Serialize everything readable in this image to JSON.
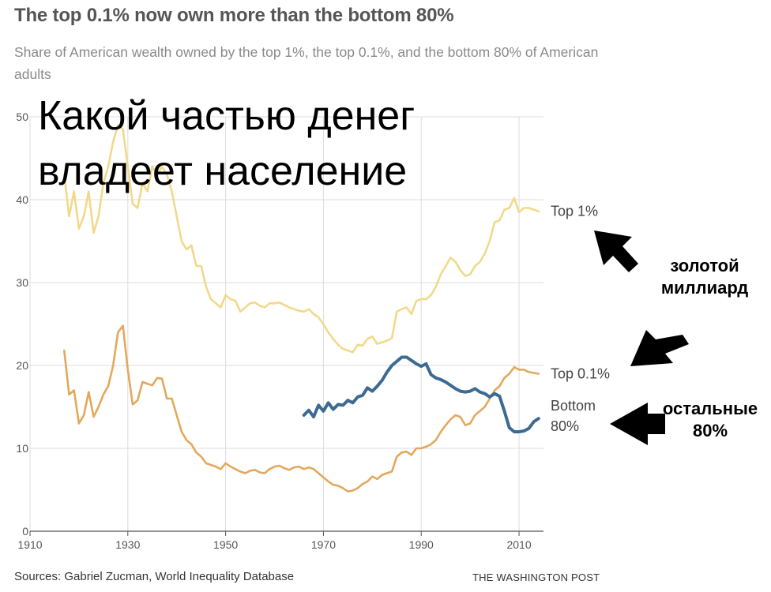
{
  "title": "The top 0.1% now own more than the bottom 80%",
  "subtitle": "Share of American wealth owned by the top 1%, the top 0.1%, and the bottom 80% of American adults",
  "overlay_caption": [
    "Какой частью денег",
    "владеет население"
  ],
  "source": "Sources: Gabriel Zucman, World Inequality Database",
  "credit": "THE WASHINGTON POST",
  "annotations": {
    "golden_billion": [
      "золотой",
      "миллиард"
    ],
    "rest": [
      "остальные",
      "80%"
    ]
  },
  "colors": {
    "top1": "#f2d98a",
    "top01": "#e3a85c",
    "bottom80": "#3d6a93",
    "grid": "#dddddd"
  },
  "chart_data": {
    "type": "line",
    "xlim": [
      1910,
      2015
    ],
    "ylim": [
      0,
      50
    ],
    "x_ticks": [
      "1910",
      "1930",
      "1950",
      "1970",
      "1990",
      "2010"
    ],
    "x_tick_values": [
      1910,
      1930,
      1950,
      1970,
      1990,
      2010
    ],
    "y_ticks": [
      "0",
      "10",
      "20",
      "30",
      "40",
      "50"
    ],
    "y_tick_values": [
      0,
      10,
      20,
      30,
      40,
      50
    ],
    "series": [
      {
        "name": "Top 1%",
        "label_lines": [
          "Top 1%"
        ],
        "color_key": "top1",
        "points": [
          [
            1917,
            43
          ],
          [
            1918,
            38
          ],
          [
            1919,
            41
          ],
          [
            1920,
            36.5
          ],
          [
            1921,
            38
          ],
          [
            1922,
            41
          ],
          [
            1923,
            36
          ],
          [
            1924,
            38
          ],
          [
            1925,
            42
          ],
          [
            1926,
            44
          ],
          [
            1927,
            47
          ],
          [
            1928,
            49
          ],
          [
            1929,
            48.5
          ],
          [
            1930,
            44
          ],
          [
            1931,
            39.5
          ],
          [
            1932,
            39
          ],
          [
            1933,
            42
          ],
          [
            1934,
            41
          ],
          [
            1935,
            44
          ],
          [
            1936,
            43
          ],
          [
            1937,
            44
          ],
          [
            1938,
            43
          ],
          [
            1939,
            41
          ],
          [
            1940,
            38
          ],
          [
            1941,
            35
          ],
          [
            1942,
            34
          ],
          [
            1943,
            34.5
          ],
          [
            1944,
            32
          ],
          [
            1945,
            32
          ],
          [
            1946,
            29.5
          ],
          [
            1947,
            28
          ],
          [
            1948,
            27.5
          ],
          [
            1949,
            27
          ],
          [
            1950,
            28.5
          ],
          [
            1951,
            28
          ],
          [
            1952,
            27.8
          ],
          [
            1953,
            26.5
          ],
          [
            1954,
            27
          ],
          [
            1955,
            27.5
          ],
          [
            1956,
            27.6
          ],
          [
            1957,
            27.2
          ],
          [
            1958,
            27
          ],
          [
            1959,
            27.5
          ],
          [
            1960,
            27.5
          ],
          [
            1961,
            27.6
          ],
          [
            1962,
            27.3
          ],
          [
            1963,
            27
          ],
          [
            1964,
            26.8
          ],
          [
            1965,
            26.6
          ],
          [
            1966,
            26.5
          ],
          [
            1967,
            26.8
          ],
          [
            1968,
            26.2
          ],
          [
            1969,
            25.8
          ],
          [
            1970,
            25
          ],
          [
            1971,
            24
          ],
          [
            1972,
            23.2
          ],
          [
            1973,
            22.5
          ],
          [
            1974,
            22
          ],
          [
            1975,
            21.8
          ],
          [
            1976,
            21.6
          ],
          [
            1977,
            22.5
          ],
          [
            1978,
            22.4
          ],
          [
            1979,
            23.2
          ],
          [
            1980,
            23.5
          ],
          [
            1981,
            22.6
          ],
          [
            1982,
            22.8
          ],
          [
            1983,
            23
          ],
          [
            1984,
            23.3
          ],
          [
            1985,
            26.5
          ],
          [
            1986,
            26.8
          ],
          [
            1987,
            27
          ],
          [
            1988,
            26.2
          ],
          [
            1989,
            27.8
          ],
          [
            1990,
            28
          ],
          [
            1991,
            28
          ],
          [
            1992,
            28.5
          ],
          [
            1993,
            29.5
          ],
          [
            1994,
            31
          ],
          [
            1995,
            32
          ],
          [
            1996,
            33
          ],
          [
            1997,
            32.5
          ],
          [
            1998,
            31.5
          ],
          [
            1999,
            30.8
          ],
          [
            2000,
            31
          ],
          [
            2001,
            32
          ],
          [
            2002,
            32.5
          ],
          [
            2003,
            33.5
          ],
          [
            2004,
            35
          ],
          [
            2005,
            37.3
          ],
          [
            2006,
            37.5
          ],
          [
            2007,
            38.8
          ],
          [
            2008,
            39
          ],
          [
            2009,
            40.2
          ],
          [
            2010,
            38.5
          ],
          [
            2011,
            39
          ],
          [
            2012,
            39
          ],
          [
            2013,
            38.8
          ],
          [
            2014,
            38.6
          ]
        ]
      },
      {
        "name": "Top 0.1%",
        "label_lines": [
          "Top 0.1%"
        ],
        "color_key": "top01",
        "points": [
          [
            1917,
            21.8
          ],
          [
            1918,
            16.5
          ],
          [
            1919,
            17
          ],
          [
            1920,
            13
          ],
          [
            1921,
            14
          ],
          [
            1922,
            16.8
          ],
          [
            1923,
            13.8
          ],
          [
            1924,
            15
          ],
          [
            1925,
            16.5
          ],
          [
            1926,
            17.5
          ],
          [
            1927,
            20
          ],
          [
            1928,
            24
          ],
          [
            1929,
            24.8
          ],
          [
            1930,
            19.5
          ],
          [
            1931,
            15.3
          ],
          [
            1932,
            15.8
          ],
          [
            1933,
            18
          ],
          [
            1934,
            17.8
          ],
          [
            1935,
            17.6
          ],
          [
            1936,
            18.5
          ],
          [
            1937,
            18.4
          ],
          [
            1938,
            16
          ],
          [
            1939,
            16
          ],
          [
            1940,
            14
          ],
          [
            1941,
            12
          ],
          [
            1942,
            11
          ],
          [
            1943,
            10.5
          ],
          [
            1944,
            9.5
          ],
          [
            1945,
            9
          ],
          [
            1946,
            8.2
          ],
          [
            1947,
            8
          ],
          [
            1948,
            7.8
          ],
          [
            1949,
            7.5
          ],
          [
            1950,
            8.2
          ],
          [
            1951,
            7.8
          ],
          [
            1952,
            7.5
          ],
          [
            1953,
            7.2
          ],
          [
            1954,
            7
          ],
          [
            1955,
            7.3
          ],
          [
            1956,
            7.4
          ],
          [
            1957,
            7.1
          ],
          [
            1958,
            7
          ],
          [
            1959,
            7.5
          ],
          [
            1960,
            7.8
          ],
          [
            1961,
            7.9
          ],
          [
            1962,
            7.6
          ],
          [
            1963,
            7.4
          ],
          [
            1964,
            7.7
          ],
          [
            1965,
            7.8
          ],
          [
            1966,
            7.5
          ],
          [
            1967,
            7.7
          ],
          [
            1968,
            7.5
          ],
          [
            1969,
            7
          ],
          [
            1970,
            6.5
          ],
          [
            1971,
            6
          ],
          [
            1972,
            5.6
          ],
          [
            1973,
            5.5
          ],
          [
            1974,
            5.2
          ],
          [
            1975,
            4.8
          ],
          [
            1976,
            4.9
          ],
          [
            1977,
            5.2
          ],
          [
            1978,
            5.7
          ],
          [
            1979,
            6
          ],
          [
            1980,
            6.6
          ],
          [
            1981,
            6.3
          ],
          [
            1982,
            6.8
          ],
          [
            1983,
            7
          ],
          [
            1984,
            7.2
          ],
          [
            1985,
            9
          ],
          [
            1986,
            9.5
          ],
          [
            1987,
            9.6
          ],
          [
            1988,
            9.2
          ],
          [
            1989,
            10
          ],
          [
            1990,
            10
          ],
          [
            1991,
            10.2
          ],
          [
            1992,
            10.5
          ],
          [
            1993,
            11
          ],
          [
            1994,
            12
          ],
          [
            1995,
            12.8
          ],
          [
            1996,
            13.5
          ],
          [
            1997,
            14
          ],
          [
            1998,
            13.8
          ],
          [
            1999,
            12.8
          ],
          [
            2000,
            13
          ],
          [
            2001,
            14
          ],
          [
            2002,
            14.5
          ],
          [
            2003,
            15
          ],
          [
            2004,
            16
          ],
          [
            2005,
            17
          ],
          [
            2006,
            17.5
          ],
          [
            2007,
            18.5
          ],
          [
            2008,
            19
          ],
          [
            2009,
            19.8
          ],
          [
            2010,
            19.5
          ],
          [
            2011,
            19.5
          ],
          [
            2012,
            19.2
          ],
          [
            2013,
            19.1
          ],
          [
            2014,
            19
          ]
        ]
      },
      {
        "name": "Bottom 80%",
        "label_lines": [
          "Bottom",
          "80%"
        ],
        "color_key": "bottom80",
        "points": [
          [
            1966,
            14
          ],
          [
            1967,
            14.6
          ],
          [
            1968,
            13.8
          ],
          [
            1969,
            15.2
          ],
          [
            1970,
            14.5
          ],
          [
            1971,
            15.5
          ],
          [
            1972,
            14.7
          ],
          [
            1973,
            15.3
          ],
          [
            1974,
            15.2
          ],
          [
            1975,
            15.8
          ],
          [
            1976,
            15.5
          ],
          [
            1977,
            16.2
          ],
          [
            1978,
            16.4
          ],
          [
            1979,
            17.3
          ],
          [
            1980,
            16.9
          ],
          [
            1981,
            17.5
          ],
          [
            1982,
            18.2
          ],
          [
            1983,
            19.2
          ],
          [
            1984,
            20
          ],
          [
            1985,
            20.5
          ],
          [
            1986,
            21
          ],
          [
            1987,
            21
          ],
          [
            1988,
            20.6
          ],
          [
            1989,
            20.2
          ],
          [
            1990,
            19.9
          ],
          [
            1991,
            20.2
          ],
          [
            1992,
            18.9
          ],
          [
            1993,
            18.5
          ],
          [
            1994,
            18.3
          ],
          [
            1995,
            18
          ],
          [
            1996,
            17.6
          ],
          [
            1997,
            17.2
          ],
          [
            1998,
            16.9
          ],
          [
            1999,
            16.8
          ],
          [
            2000,
            16.9
          ],
          [
            2001,
            17.2
          ],
          [
            2002,
            16.8
          ],
          [
            2003,
            16.6
          ],
          [
            2004,
            16.2
          ],
          [
            2005,
            16.6
          ],
          [
            2006,
            16.3
          ],
          [
            2007,
            14.5
          ],
          [
            2008,
            12.5
          ],
          [
            2009,
            12
          ],
          [
            2010,
            12
          ],
          [
            2011,
            12.1
          ],
          [
            2012,
            12.4
          ],
          [
            2013,
            13.2
          ],
          [
            2014,
            13.6
          ]
        ]
      }
    ]
  }
}
